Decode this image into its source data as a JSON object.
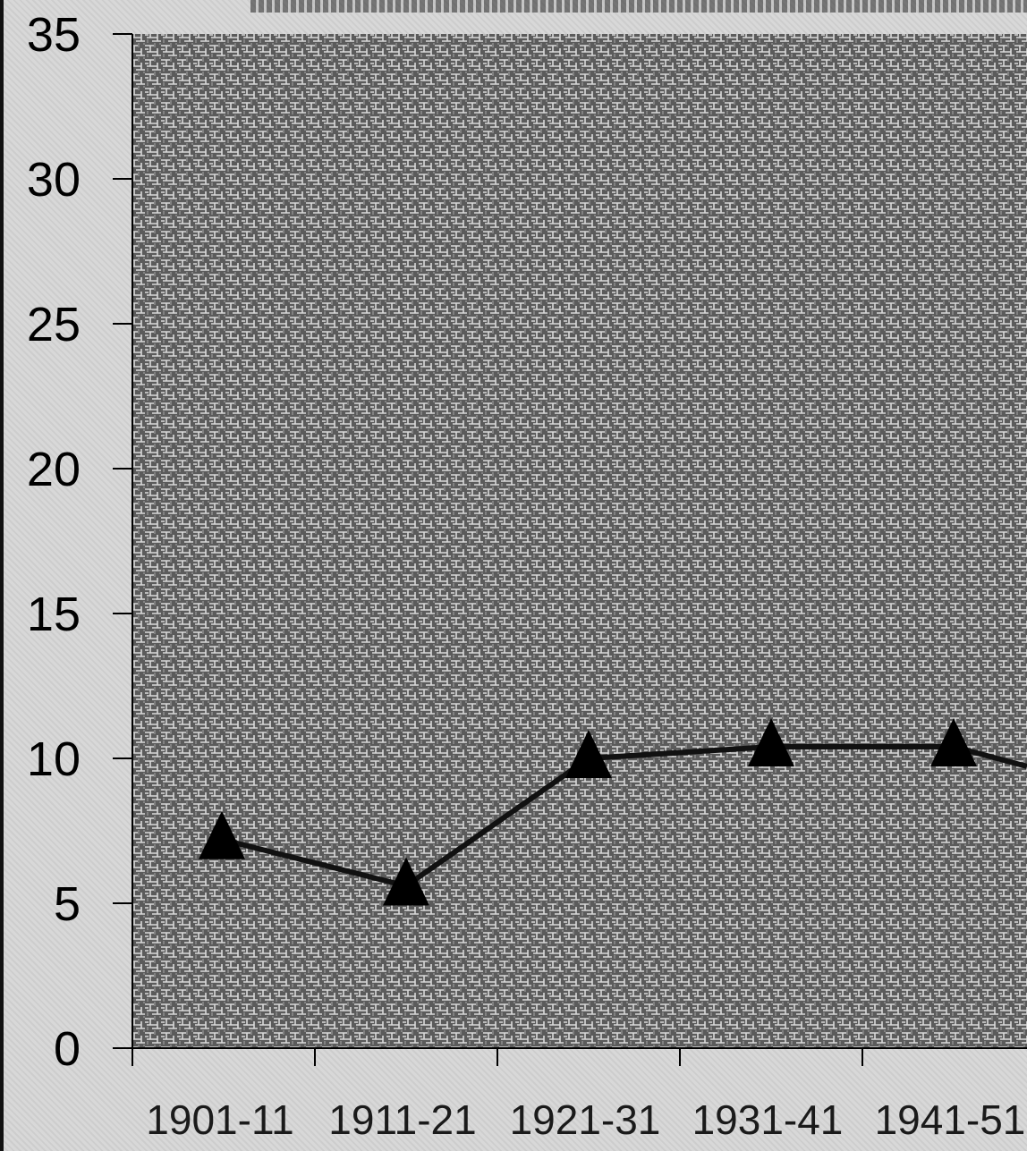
{
  "chart_data": {
    "type": "line",
    "categories": [
      "1901-11",
      "1911-21",
      "1921-31",
      "1931-41",
      "1941-51"
    ],
    "series": [
      {
        "values": [
          7.2,
          5.6,
          10.0,
          10.4,
          10.4
        ]
      }
    ],
    "x_axis": {
      "ticks": [
        "1901-11",
        "1911-21",
        "1921-31",
        "1931-41",
        "1941-51"
      ]
    },
    "y_axis": {
      "range": [
        0,
        35
      ],
      "ticks": [
        0,
        5,
        10,
        15,
        20,
        25,
        30,
        35
      ]
    },
    "marker": "triangle",
    "grid": false,
    "colors": {
      "line": "#111111",
      "marker": "#000000",
      "plot_background": "#6a6a6a",
      "axis": "#000000"
    }
  }
}
